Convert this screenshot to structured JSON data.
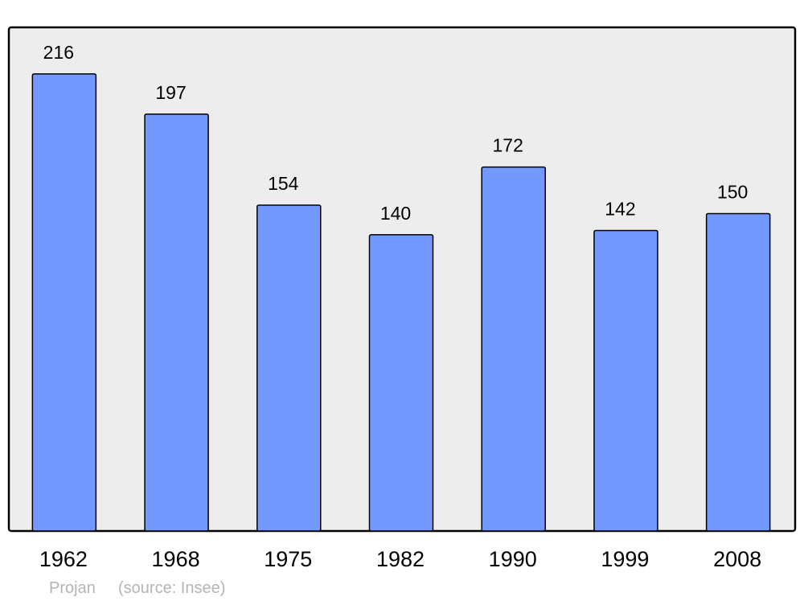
{
  "chart_data": {
    "type": "bar",
    "categories": [
      "1962",
      "1968",
      "1975",
      "1982",
      "1990",
      "1999",
      "2008"
    ],
    "values": [
      216,
      197,
      154,
      140,
      172,
      142,
      150
    ],
    "ylim": [
      0,
      238
    ],
    "grid": false,
    "bar_color": "#7399ff",
    "plot_background": "#ededed",
    "data_labels": true
  },
  "footer": {
    "author": "Projan",
    "source": "(source: Insee)"
  }
}
